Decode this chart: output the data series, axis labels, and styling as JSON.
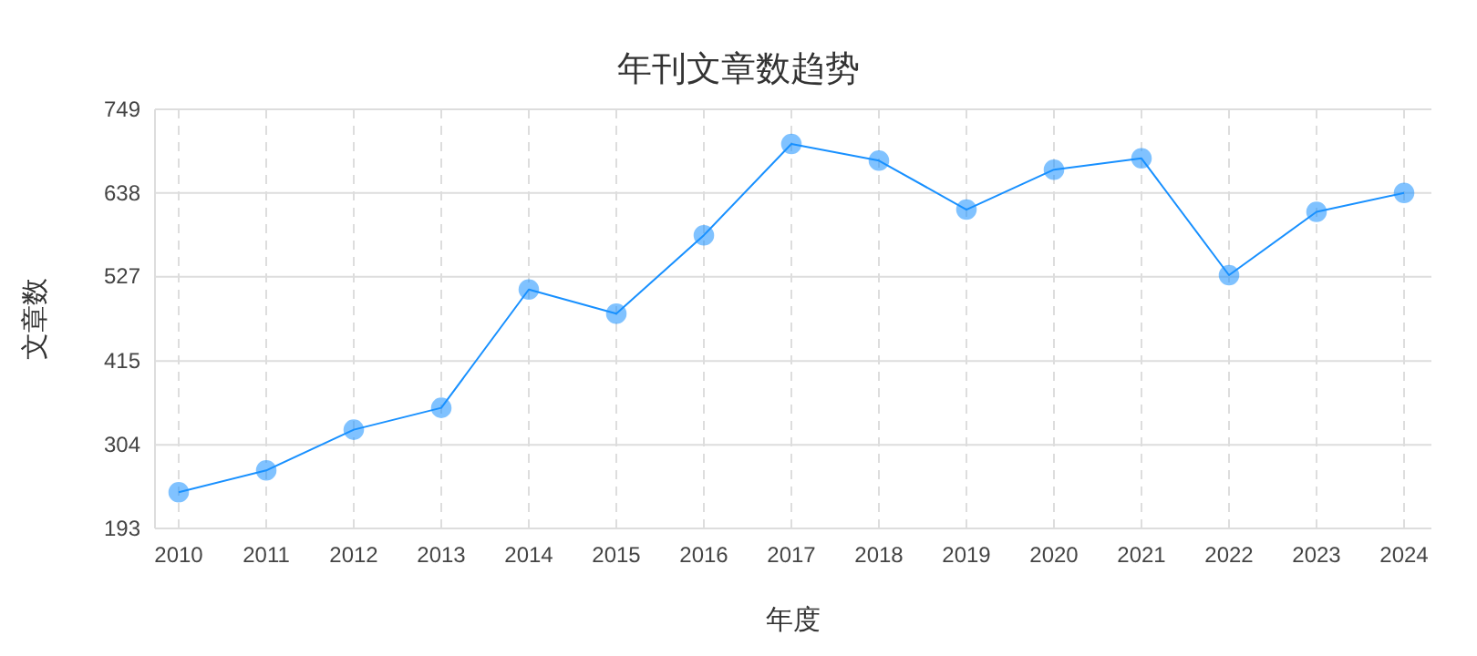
{
  "chart_data": {
    "type": "line",
    "title": "年刊文章数趋势",
    "xlabel": "年度",
    "ylabel": "文章数",
    "categories": [
      "2010",
      "2011",
      "2012",
      "2013",
      "2014",
      "2015",
      "2016",
      "2017",
      "2018",
      "2019",
      "2020",
      "2021",
      "2022",
      "2023",
      "2024"
    ],
    "series": [
      {
        "color": "#1890ff",
        "values": [
          241,
          270,
          324,
          353,
          510,
          478,
          582,
          703,
          681,
          616,
          669,
          684,
          529,
          613,
          638
        ]
      }
    ],
    "ylim": [
      193,
      749
    ],
    "yticks": [
      193,
      304,
      415,
      527,
      638,
      749
    ],
    "grid": true,
    "marker": "circle",
    "line_style": "solid"
  }
}
